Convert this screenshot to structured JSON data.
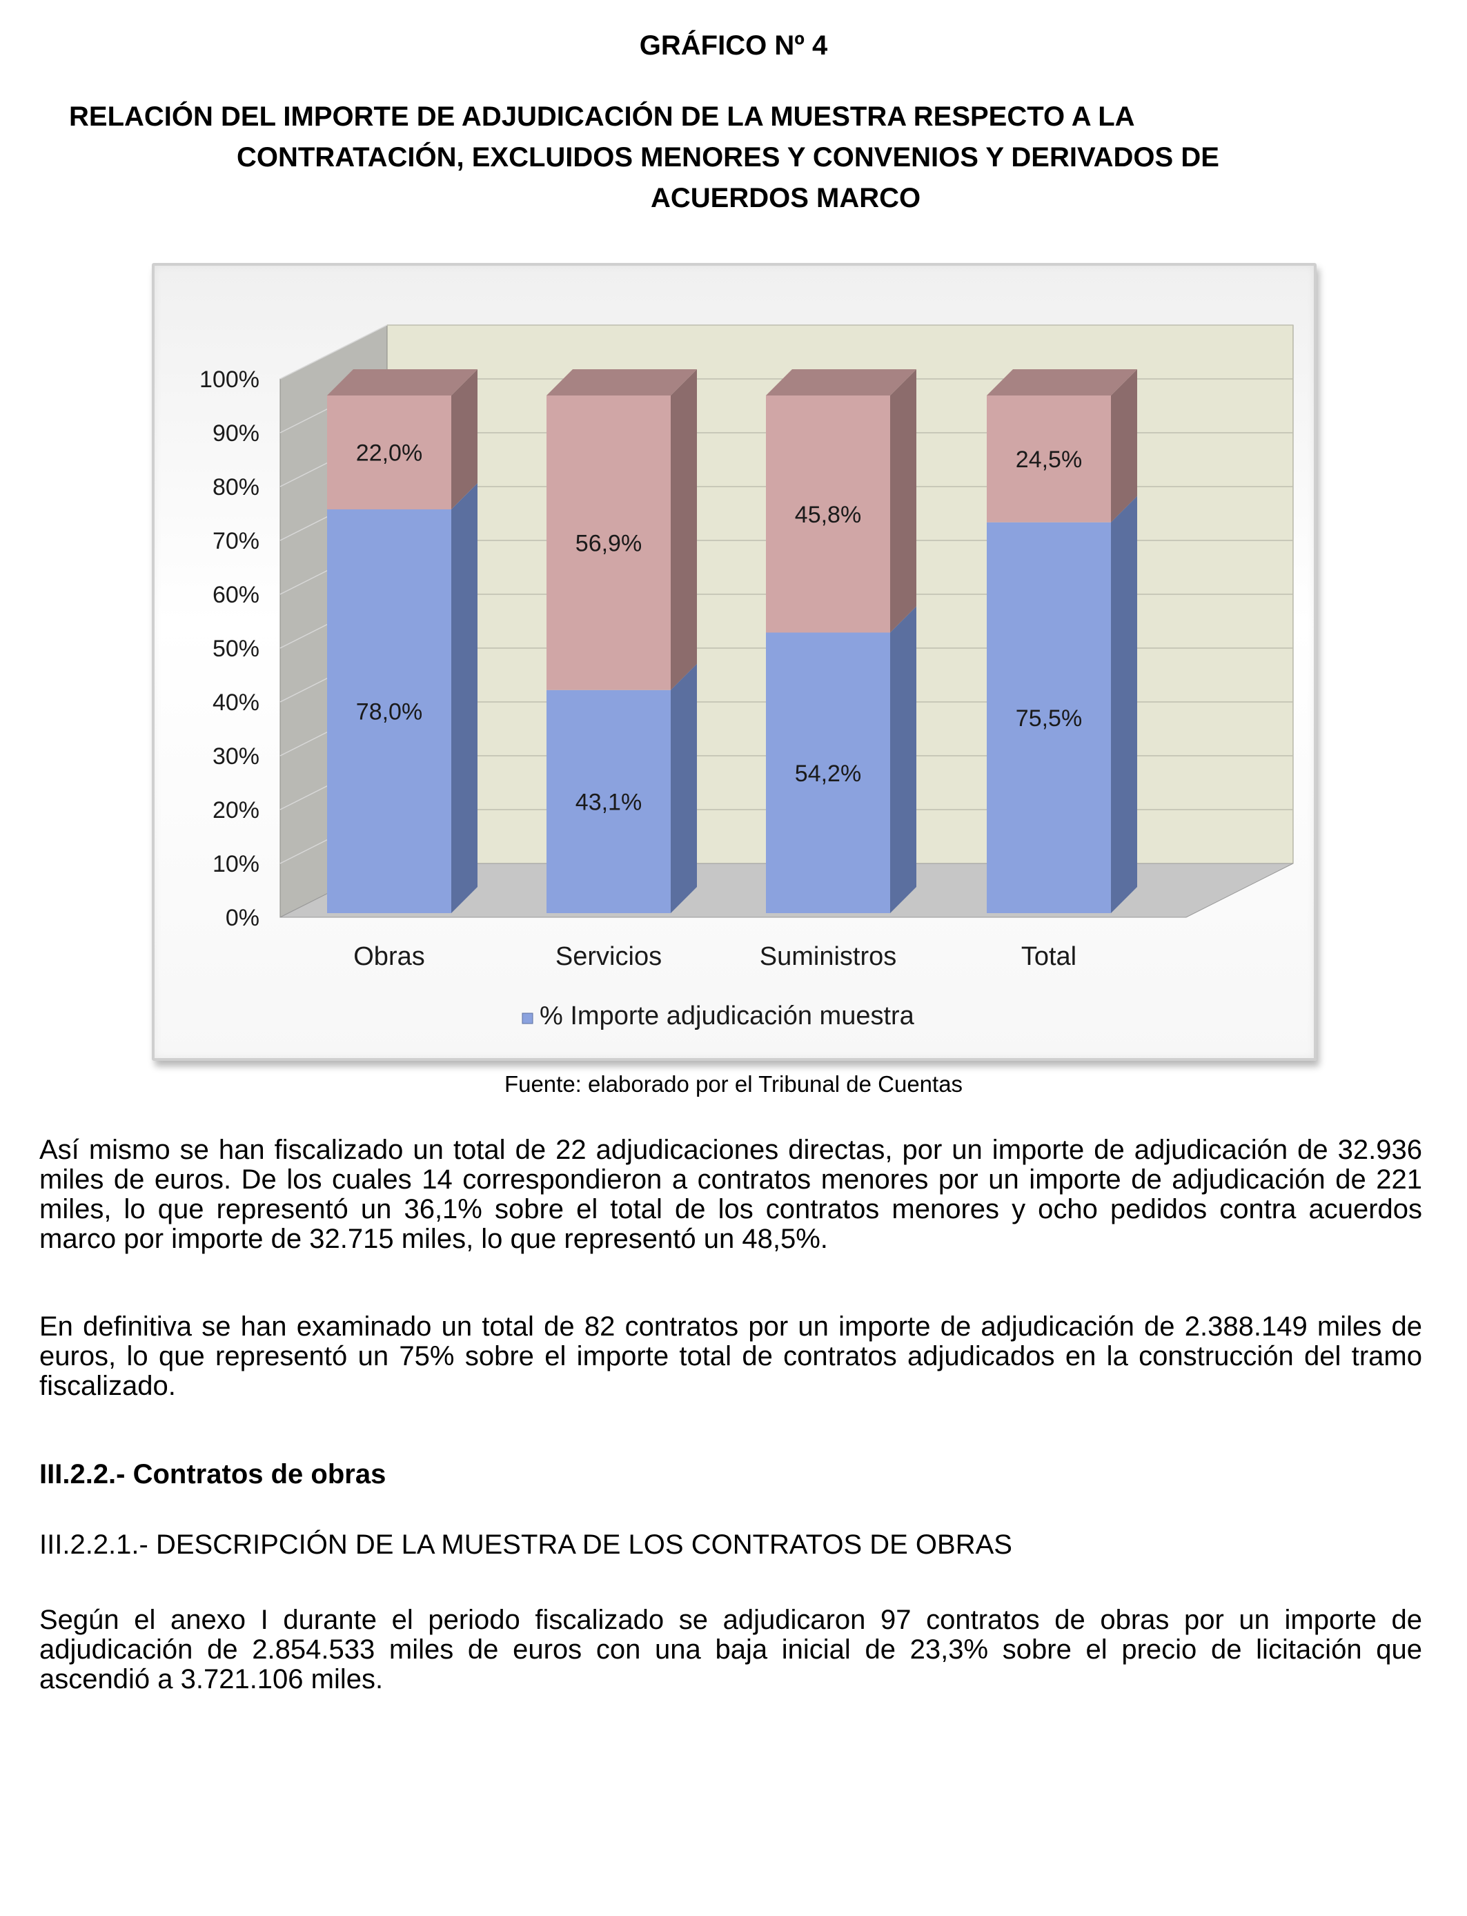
{
  "header": {
    "title": "GRÁFICO Nº 4",
    "subtitle_lines": [
      "RELACIÓN DEL IMPORTE DE ADJUDICACIÓN DE LA MUESTRA RESPECTO A LA",
      "CONTRATACIÓN, EXCLUIDOS MENORES Y CONVENIOS Y DERIVADOS DE",
      "ACUERDOS MARCO"
    ]
  },
  "chart_data": {
    "type": "bar",
    "stacked": true,
    "percent_stacked": true,
    "three_d": true,
    "categories": [
      "Obras",
      "Servicios",
      "Suministros",
      "Total"
    ],
    "series": [
      {
        "name": "% Importe adjudicación muestra",
        "values": [
          78.0,
          43.1,
          54.2,
          75.5
        ],
        "labels": [
          "78,0%",
          "43,1%",
          "54,2%",
          "75,5%"
        ],
        "color": "#8ba2de"
      },
      {
        "values": [
          22.0,
          56.9,
          45.8,
          24.5
        ],
        "labels": [
          "22,0%",
          "56,9%",
          "45,8%",
          "24,5%"
        ],
        "color": "#d0a6a6"
      }
    ],
    "y_ticks": [
      "0%",
      "10%",
      "20%",
      "30%",
      "40%",
      "50%",
      "60%",
      "70%",
      "80%",
      "90%",
      "100%"
    ],
    "ylim": [
      0,
      100
    ],
    "grid": true,
    "legend": "bottom",
    "legend_entries": [
      "% Importe adjudicación muestra"
    ],
    "colors": {
      "wall": "#e6e6d3",
      "side_wall": "#b9b9b4",
      "floor": "#c6c6c6",
      "series1_side": "#5b6f9f",
      "series2_side": "#8c6c6c"
    }
  },
  "source_note": "Fuente: elaborado por el Tribunal de Cuentas",
  "body": {
    "p1": "Así mismo se han fiscalizado un total de 22 adjudicaciones directas, por un importe de adjudicación de 32.936 miles de euros. De los cuales 14 correspondieron a contratos menores por un importe de adjudicación de 221 miles, lo que representó un 36,1% sobre el total de los contratos menores y ocho pedidos contra acuerdos marco por importe de 32.715 miles, lo que representó un 48,5%.",
    "p2": "En definitiva se han examinado un total de 82 contratos por un importe de adjudicación de 2.388.149 miles de euros, lo que representó un 75% sobre el importe total de contratos adjudicados en la construcción del tramo fiscalizado.",
    "section_heading": "III.2.2.-  Contratos de obras",
    "subsection_heading": "III.2.2.1.- DESCRIPCIÓN DE LA MUESTRA DE LOS CONTRATOS DE OBRAS",
    "p3": "Según el anexo I durante el periodo fiscalizado se adjudicaron 97 contratos de obras por un importe de adjudicación de 2.854.533 miles de euros con una baja inicial de 23,3% sobre el precio de licitación que ascendió a 3.721.106 miles."
  }
}
